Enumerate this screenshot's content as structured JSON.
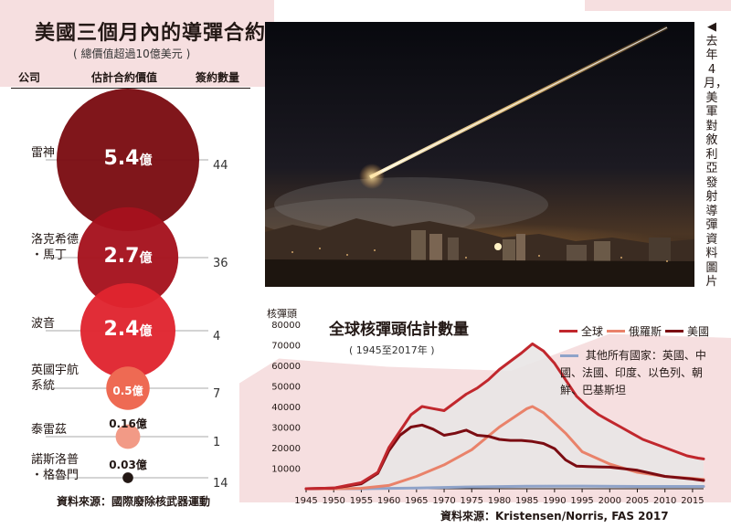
{
  "left_panel": {
    "title": "美國三個月內的導彈合約",
    "subtitle": "( 總價值超過10億美元 )",
    "headers": {
      "company": "公司",
      "value": "估計合約價值",
      "count": "簽約數量"
    },
    "source": "資料來源：國際廢除核武器運動",
    "unit": "億"
  },
  "chart_data": [
    {
      "type": "bubble",
      "title": "美國三個月內的導彈合約",
      "subtitle": "( 總價值超過10億美元 )",
      "categories": [
        "雷神",
        "洛克希德·馬丁",
        "波音",
        "英國宇航系統",
        "泰雷茲",
        "諾斯洛普·格魯門"
      ],
      "values": [
        5.4,
        2.7,
        2.4,
        0.5,
        0.16,
        0.03
      ],
      "counts": [
        44,
        36,
        4,
        7,
        1,
        14
      ],
      "value_labels": [
        "5.4",
        "2.7",
        "2.4",
        "0.5",
        "0.16",
        "0.03"
      ],
      "company_lines": [
        [
          "雷神"
        ],
        [
          "洛克希德",
          "・馬丁"
        ],
        [
          "波音"
        ],
        [
          "英國宇航",
          "系統"
        ],
        [
          "泰雷茲"
        ],
        [
          "諾斯洛普",
          "・格魯門"
        ]
      ],
      "colors": [
        "#7b0c12",
        "#a5121d",
        "#e0242f",
        "#ee6a53",
        "#f29a86",
        "#231815"
      ]
    },
    {
      "type": "line",
      "title": "全球核彈頭估計數量",
      "subtitle": "( 1945至2017年 )",
      "ylabel": "核彈頭",
      "ylim": [
        0,
        80000
      ],
      "yticks": [
        10000,
        20000,
        30000,
        40000,
        50000,
        60000,
        70000,
        80000
      ],
      "xlim": [
        1945,
        2017
      ],
      "xticks": [
        1945,
        1950,
        1955,
        1960,
        1965,
        1970,
        1975,
        1980,
        1985,
        1990,
        1995,
        2000,
        2005,
        2010,
        2015
      ],
      "grid": false,
      "legend": "top-right",
      "series": [
        {
          "name": "全球",
          "color": "#c1272d",
          "x": [
            1945,
            1950,
            1955,
            1958,
            1960,
            1962,
            1964,
            1966,
            1968,
            1970,
            1972,
            1974,
            1976,
            1978,
            1980,
            1982,
            1984,
            1986,
            1988,
            1990,
            1992,
            1994,
            1996,
            1998,
            2000,
            2002,
            2004,
            2006,
            2008,
            2010,
            2012,
            2014,
            2016,
            2017
          ],
          "y": [
            0,
            300,
            3000,
            8000,
            20000,
            28000,
            36000,
            40000,
            39000,
            38000,
            42000,
            46000,
            49000,
            53000,
            58000,
            62000,
            66000,
            70500,
            67000,
            61000,
            53000,
            45000,
            40000,
            36000,
            33000,
            30000,
            27000,
            24000,
            22000,
            20000,
            18000,
            16000,
            14900,
            14500
          ]
        },
        {
          "name": "俄羅斯",
          "color": "#e9826a",
          "x": [
            1945,
            1950,
            1955,
            1960,
            1965,
            1970,
            1975,
            1980,
            1985,
            1986,
            1988,
            1990,
            1992,
            1995,
            2000,
            2005,
            2010,
            2015,
            2017
          ],
          "y": [
            0,
            0,
            200,
            1600,
            6000,
            11600,
            19000,
            30000,
            39000,
            40000,
            37000,
            32000,
            27000,
            18000,
            12000,
            8000,
            6000,
            5000,
            4500
          ]
        },
        {
          "name": "美國",
          "color": "#7b0c12",
          "x": [
            1945,
            1950,
            1955,
            1958,
            1960,
            1962,
            1964,
            1966,
            1968,
            1970,
            1972,
            1974,
            1976,
            1978,
            1980,
            1982,
            1984,
            1986,
            1988,
            1990,
            1992,
            1994,
            1996,
            1998,
            2000,
            2005,
            2010,
            2015,
            2017
          ],
          "y": [
            0,
            300,
            2400,
            7500,
            18500,
            26000,
            30000,
            31000,
            29000,
            26000,
            27000,
            28500,
            26000,
            25500,
            24000,
            23500,
            23500,
            23000,
            22000,
            19500,
            14000,
            11000,
            10800,
            10600,
            10500,
            9000,
            6000,
            4700,
            4000
          ]
        },
        {
          "name": "其他所有國家：英國、中國、法國、印度、以色列、朝鮮、巴基斯坦",
          "color": "#8fa3c9",
          "x": [
            1945,
            1955,
            1965,
            1975,
            1985,
            1995,
            2005,
            2017
          ],
          "y": [
            0,
            20,
            350,
            900,
            1200,
            1300,
            1100,
            1100
          ]
        }
      ]
    }
  ],
  "photo": {
    "caption": "◀去年4月，美軍對敘利亞發射導彈　資料圖片"
  },
  "chart": {
    "source": "資料來源：Kristensen/Norris, FAS 2017"
  }
}
